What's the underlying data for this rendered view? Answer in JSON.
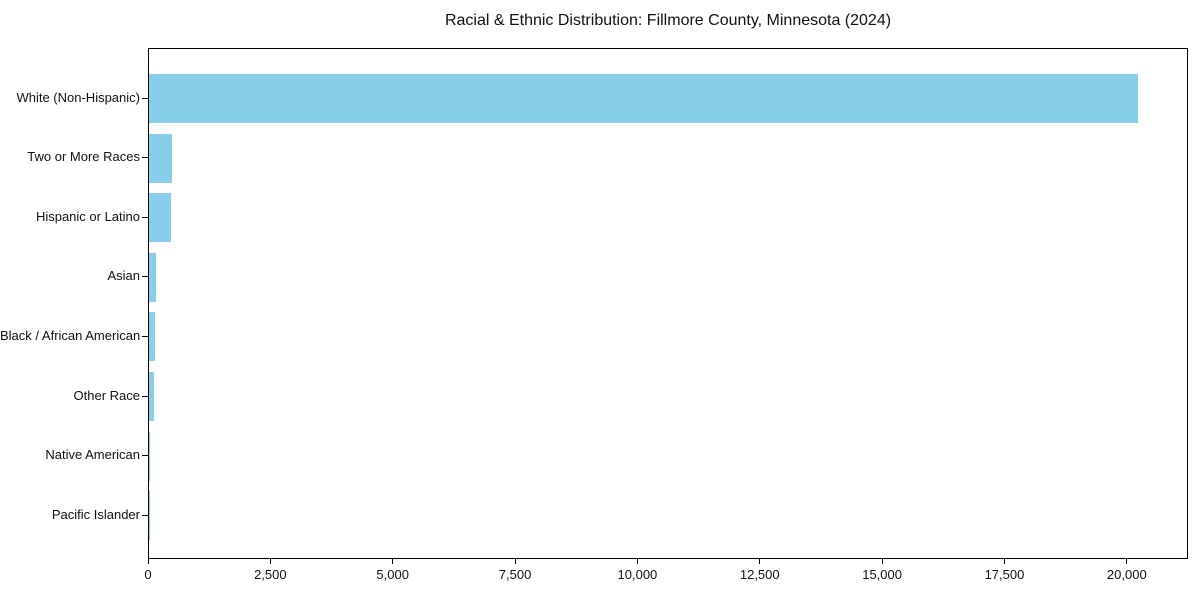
{
  "chart_data": {
    "type": "bar",
    "orientation": "horizontal",
    "title": "Racial & Ethnic Distribution: Fillmore County, Minnesota (2024)",
    "categories": [
      "White (Non-Hispanic)",
      "Two or More Races",
      "Hispanic or Latino",
      "Asian",
      "Black / African American",
      "Other Race",
      "Native American",
      "Pacific Islander"
    ],
    "values": [
      20200,
      460,
      440,
      145,
      120,
      100,
      15,
      5
    ],
    "bar_color": "#87CEEB",
    "xlabel": "",
    "ylabel": "",
    "xlim": [
      0,
      21250
    ],
    "x_ticks": [
      0,
      2500,
      5000,
      7500,
      10000,
      12500,
      15000,
      17500,
      20000
    ],
    "x_tick_labels": [
      "0",
      "2,500",
      "5,000",
      "7,500",
      "10,000",
      "12,500",
      "15,000",
      "17,500",
      "20,000"
    ],
    "grid": false,
    "legend": null,
    "background_color": "#ffffff",
    "frame_color": "#000000"
  }
}
